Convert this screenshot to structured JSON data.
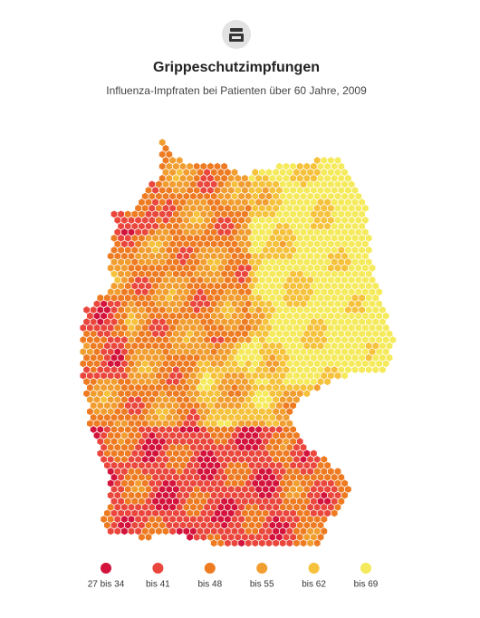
{
  "header": {
    "title": "Grippeschutzimpfungen",
    "subtitle": "Influenza-Impfraten bei Patienten über 60 Jahre, 2009"
  },
  "legend": [
    {
      "label": "27 bis 34",
      "color": "#d3133c"
    },
    {
      "label": "bis 41",
      "color": "#ea463c"
    },
    {
      "label": "bis 48",
      "color": "#ee7b21"
    },
    {
      "label": "bis 55",
      "color": "#f29d2f"
    },
    {
      "label": "bis 62",
      "color": "#f6c13b"
    },
    {
      "label": "bis 69",
      "color": "#f5ea5c"
    }
  ]
}
